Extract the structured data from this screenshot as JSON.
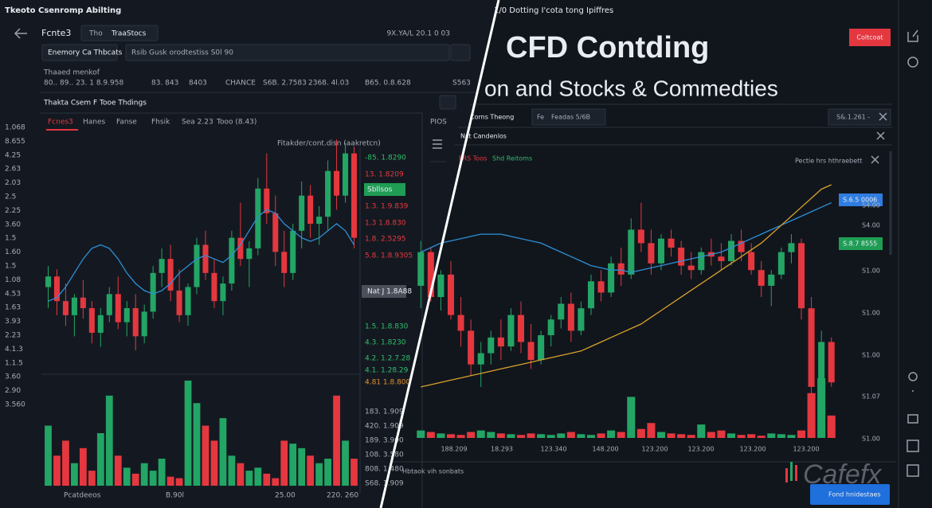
{
  "left": {
    "window_title": "Tkeoto Csenromp Abilting",
    "symbol": "Fcnte3",
    "tabs": [
      "Tho",
      "TraaStocs"
    ],
    "price": "9X.YA/L 20.1 0 03",
    "search": "Enemory Ca Thbcats",
    "filter": "Rsib Gusk orodtestiss  S0l 90",
    "section": "Thaaed menkof",
    "ticker": [
      "80.. 89.. 23. 1 8.9.958",
      "83. 843",
      "8403",
      "CHANCE",
      "S6B. 2.7583",
      "2368. 4l.03",
      "B65. 0.8.628",
      "S563"
    ],
    "panel_title": "Thakta Csem F Tooe Thdings",
    "chart_tabs": [
      "Fcnes3",
      "Hanes",
      "Fanse",
      "Fhsik",
      "Sea 2.23",
      "Tooo (8.43)"
    ],
    "chart_note": "Fitakder/cont.disn (aakretcn)",
    "y_labels": [
      "1.068",
      "8.655",
      "4.25",
      "2.63",
      "2.03",
      "2.5",
      "2.25",
      "3.60",
      "1.5",
      "1.60",
      "1.5",
      "1.08",
      "4.53",
      "1.63",
      "3.93",
      "2.23",
      "4.1.3",
      "1.1.5",
      "3.60",
      "2.90",
      "3.560"
    ],
    "price_labels": [
      {
        "text": "-85. 1.8290",
        "color": "#2fbf6a"
      },
      {
        "text": "13. 1.8209",
        "color": "#e8393f"
      },
      {
        "text": "Sbllsos",
        "color": "#1f9d55"
      },
      {
        "text": "1.3. 1.9.839",
        "color": "#e8393f"
      },
      {
        "text": "1.3 1.8.830",
        "color": "#e8393f"
      },
      {
        "text": "1.8. 2.5295",
        "color": "#e8393f"
      },
      {
        "text": "5.8. 1.8.9305",
        "color": "#e8393f"
      },
      {
        "text": "Nat J 1.8A88",
        "color": "#4a4f5a"
      },
      {
        "text": "1.5. 1.8.830",
        "color": "#2fbf6a"
      },
      {
        "text": "4.3. 1.8230",
        "color": "#2fbf6a"
      },
      {
        "text": "4.2. 1.2.7.28",
        "color": "#2fbf6a"
      },
      {
        "text": "4.1. 1.28.29",
        "color": "#2fbf6a"
      },
      {
        "text": "4.81 1.8.800",
        "color": "#e0902f"
      }
    ],
    "volume_labels": [
      "183. 1.909",
      "420. 1.909",
      "189. 3.900",
      "108. 3.580",
      "808. 1.480",
      "S68. 1.909"
    ],
    "x_labels": [
      "Pcatdeeos",
      "B.90l",
      "25.00",
      "220. 260"
    ],
    "side_label": "PIOS",
    "up_color": "#23a565",
    "down_color": "#e5373f",
    "ma_color": "#2e8fd6",
    "candles": [
      [
        44,
        50,
        38,
        47
      ],
      [
        47,
        49,
        36,
        40
      ],
      [
        40,
        45,
        33,
        36
      ],
      [
        36,
        42,
        30,
        41
      ],
      [
        41,
        46,
        35,
        38
      ],
      [
        38,
        40,
        28,
        31
      ],
      [
        31,
        38,
        27,
        36
      ],
      [
        36,
        44,
        34,
        42
      ],
      [
        42,
        47,
        32,
        34
      ],
      [
        34,
        40,
        30,
        38
      ],
      [
        38,
        42,
        26,
        30
      ],
      [
        30,
        39,
        28,
        37
      ],
      [
        37,
        50,
        35,
        48
      ],
      [
        48,
        55,
        44,
        52
      ],
      [
        52,
        56,
        40,
        43
      ],
      [
        43,
        49,
        34,
        36
      ],
      [
        36,
        45,
        33,
        44
      ],
      [
        44,
        58,
        42,
        56
      ],
      [
        56,
        60,
        46,
        48
      ],
      [
        48,
        52,
        38,
        40
      ],
      [
        40,
        47,
        36,
        45
      ],
      [
        45,
        60,
        43,
        58
      ],
      [
        58,
        68,
        50,
        52
      ],
      [
        52,
        57,
        44,
        55
      ],
      [
        55,
        75,
        53,
        72
      ],
      [
        72,
        82,
        62,
        65
      ],
      [
        65,
        70,
        50,
        54
      ],
      [
        54,
        60,
        44,
        48
      ],
      [
        48,
        62,
        46,
        60
      ],
      [
        60,
        74,
        55,
        70
      ],
      [
        70,
        73,
        58,
        62
      ],
      [
        62,
        67,
        56,
        64
      ],
      [
        64,
        80,
        60,
        77
      ],
      [
        77,
        86,
        66,
        70
      ],
      [
        70,
        85,
        68,
        82
      ],
      [
        82,
        84,
        55,
        58
      ]
    ],
    "volumes": [
      40,
      20,
      30,
      15,
      25,
      10,
      35,
      60,
      20,
      12,
      8,
      15,
      10,
      18,
      6,
      5,
      70,
      55,
      40,
      30,
      45,
      20,
      15,
      10,
      12,
      8,
      5,
      30,
      28,
      25,
      20,
      15,
      18,
      60,
      30,
      18
    ],
    "ma": [
      40,
      41,
      44,
      48,
      52,
      55,
      56,
      55,
      52,
      48,
      45,
      43,
      42,
      43,
      45,
      48,
      50,
      52,
      53,
      52,
      51,
      53,
      56,
      60,
      64,
      66,
      65,
      62,
      60,
      58,
      57,
      58,
      60,
      62,
      60,
      56
    ]
  },
  "right": {
    "top_text": "1/0 Dotting I'cota tong Ipiffres",
    "title": "CFD Contding",
    "subtitle": "on and Stocks & Commedties",
    "button": "Coltcoat",
    "tab_label": "Corns Theong",
    "tab_box": [
      "Fe",
      "Feadas 5/6B"
    ],
    "tab_price": "S&.1.261 -",
    "panel_label": "Nct Candenlos",
    "legend": [
      {
        "text": "FRS Toos",
        "color": "#e8393f"
      },
      {
        "text": "Shd Reitoms",
        "color": "#2fbf6a"
      }
    ],
    "note": "Pectie hrs hthraebett",
    "price_tags": [
      {
        "text": "S.6.5 0006",
        "color": "#2f7de0"
      },
      {
        "text": "S.8.7 8555",
        "color": "#1f9d55"
      }
    ],
    "y_labels": [
      "S4.00",
      "S4.00",
      "S1.00",
      "S1.00",
      "S1.00",
      "S1.07",
      "S1.00"
    ],
    "x_labels": [
      "188.209",
      "18.293",
      "123.340",
      "148.200",
      "123.200",
      "123.200",
      "123.200",
      "123.200"
    ],
    "footer_text": "Hbtaok vih sonbats",
    "logo": "Cafefx",
    "action": "Fond hnidestaes",
    "up_color": "#23a565",
    "down_color": "#e5373f",
    "ma_color": "#2e8fd6",
    "ma2_color": "#d9a12a",
    "candles": [
      [
        55,
        75,
        45,
        70
      ],
      [
        70,
        72,
        48,
        50
      ],
      [
        50,
        62,
        44,
        60
      ],
      [
        60,
        66,
        40,
        42
      ],
      [
        42,
        50,
        28,
        35
      ],
      [
        35,
        40,
        15,
        20
      ],
      [
        20,
        30,
        10,
        25
      ],
      [
        25,
        35,
        20,
        32
      ],
      [
        32,
        40,
        22,
        28
      ],
      [
        28,
        45,
        26,
        42
      ],
      [
        42,
        48,
        25,
        30
      ],
      [
        30,
        38,
        18,
        22
      ],
      [
        22,
        35,
        20,
        33
      ],
      [
        33,
        42,
        28,
        40
      ],
      [
        40,
        50,
        36,
        47
      ],
      [
        47,
        52,
        30,
        35
      ],
      [
        35,
        48,
        33,
        45
      ],
      [
        45,
        60,
        42,
        57
      ],
      [
        57,
        62,
        48,
        52
      ],
      [
        52,
        68,
        50,
        65
      ],
      [
        65,
        72,
        55,
        60
      ],
      [
        60,
        85,
        58,
        80
      ],
      [
        80,
        92,
        70,
        74
      ],
      [
        74,
        80,
        60,
        65
      ],
      [
        65,
        78,
        62,
        76
      ],
      [
        76,
        80,
        68,
        72
      ],
      [
        72,
        75,
        60,
        64
      ],
      [
        64,
        70,
        58,
        62
      ],
      [
        62,
        72,
        60,
        70
      ],
      [
        70,
        76,
        64,
        68
      ],
      [
        68,
        74,
        62,
        66
      ],
      [
        66,
        78,
        64,
        75
      ],
      [
        75,
        80,
        66,
        70
      ],
      [
        70,
        74,
        60,
        62
      ],
      [
        62,
        66,
        50,
        55
      ],
      [
        55,
        62,
        46,
        60
      ],
      [
        60,
        72,
        58,
        70
      ],
      [
        70,
        78,
        65,
        74
      ],
      [
        74,
        76,
        40,
        45
      ],
      [
        45,
        50,
        5,
        10
      ],
      [
        10,
        35,
        8,
        30
      ],
      [
        30,
        32,
        10,
        12
      ]
    ],
    "volumes": [
      10,
      8,
      6,
      5,
      4,
      8,
      10,
      8,
      6,
      5,
      4,
      6,
      5,
      4,
      6,
      8,
      5,
      4,
      6,
      10,
      8,
      55,
      12,
      20,
      8,
      6,
      5,
      4,
      18,
      8,
      10,
      6,
      4,
      5,
      3,
      6,
      5,
      4,
      10,
      60,
      80,
      30
    ],
    "ma": [
      70,
      72,
      74,
      75,
      76,
      77,
      78,
      78,
      78,
      77,
      76,
      75,
      74,
      72,
      70,
      68,
      66,
      64,
      63,
      62,
      62,
      61,
      62,
      63,
      64,
      65,
      66,
      67,
      68,
      69,
      70,
      72,
      74,
      76,
      78,
      80,
      82,
      84,
      86,
      88,
      90,
      92
    ],
    "ma2": [
      10,
      11,
      12,
      13,
      14,
      15,
      16,
      17,
      18,
      19,
      20,
      21,
      22,
      23,
      24,
      25,
      26,
      28,
      30,
      32,
      34,
      36,
      38,
      41,
      44,
      47,
      50,
      53,
      56,
      59,
      62,
      65,
      68,
      71,
      74,
      78,
      82,
      86,
      90,
      94,
      98,
      100
    ]
  }
}
